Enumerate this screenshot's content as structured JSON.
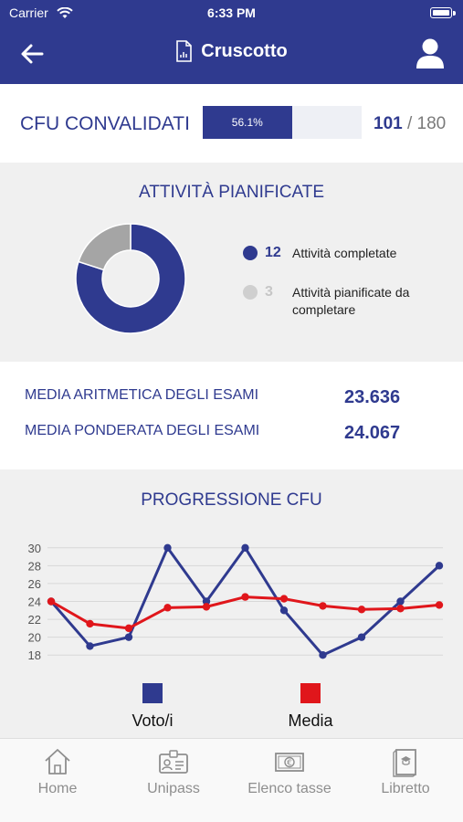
{
  "status_bar": {
    "carrier": "Carrier",
    "time": "6:33 PM"
  },
  "header": {
    "title": "Cruscotto"
  },
  "cfu": {
    "label": "CFU CONVALIDATI",
    "percent_text": "56.1%",
    "progress_fraction": 0.561,
    "done": "101",
    "total_text": " / 180"
  },
  "attivita": {
    "title": "ATTIVITÀ PIANIFICATE",
    "completed": {
      "count": "12",
      "label": "Attività completate",
      "value": 12
    },
    "planned": {
      "count": "3",
      "label": "Attività pianificate da completare",
      "value": 3
    }
  },
  "medie": {
    "aritmetica_label": "MEDIA ARITMETICA DEGLI ESAMI",
    "aritmetica_value": "23.636",
    "ponderata_label": "MEDIA PONDERATA DEGLI ESAMI",
    "ponderata_value": "24.067"
  },
  "chart_data": {
    "type": "line",
    "title": "PROGRESSIONE CFU",
    "ylim": [
      17,
      31
    ],
    "yticks": [
      "30",
      "28",
      "26",
      "24",
      "22",
      "20",
      "18"
    ],
    "x": [
      1,
      2,
      3,
      4,
      5,
      6,
      7,
      8,
      9,
      10,
      11
    ],
    "grid": true,
    "legend_position": "bottom",
    "series": [
      {
        "name": "Voto/i",
        "color": "#2f3a8f",
        "values": [
          24,
          19,
          20,
          30,
          24,
          30,
          23,
          18,
          20,
          24,
          28
        ]
      },
      {
        "name": "Media",
        "color": "#e0161b",
        "values": [
          24,
          21.5,
          21,
          23.3,
          23.4,
          24.5,
          24.3,
          23.5,
          23.1,
          23.2,
          23.6
        ]
      }
    ]
  },
  "tabs": [
    {
      "label": "Home",
      "icon": "home-icon"
    },
    {
      "label": "Unipass",
      "icon": "id-card-icon"
    },
    {
      "label": "Elenco tasse",
      "icon": "euro-bill-icon"
    },
    {
      "label": "Libretto",
      "icon": "booklet-icon"
    }
  ],
  "colors": {
    "primary": "#2f3a8f",
    "accent_red": "#e0161b",
    "grey": "#a5a5a5"
  }
}
